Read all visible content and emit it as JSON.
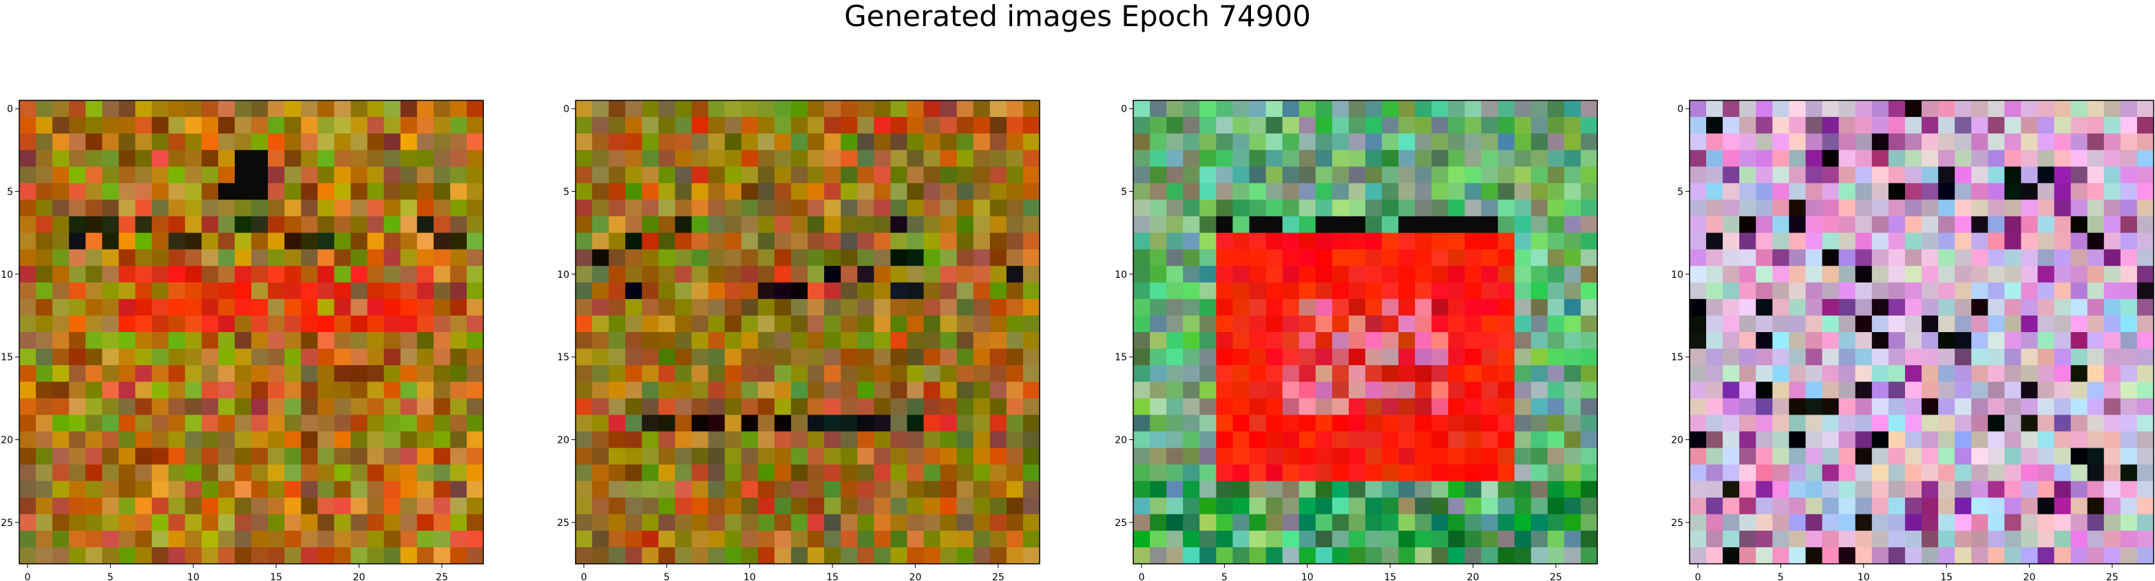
{
  "figure": {
    "title": "Generated images Epoch 74900"
  },
  "chart_data": [
    {
      "type": "heatmap",
      "title": "",
      "image_index": 1,
      "grid_size": [
        28,
        28
      ],
      "dominant_palette": [
        "#c8781e",
        "#a05a14",
        "#8c8c14",
        "#e8320a",
        "#101010"
      ],
      "features": "orange/olive noise with a red horizontal band around rows 10-13 and a black block near row 4, col 13",
      "xticks": [
        0,
        5,
        10,
        15,
        20,
        25
      ],
      "yticks": [
        0,
        5,
        10,
        15,
        20,
        25
      ],
      "xlim": [
        -0.5,
        27.5
      ],
      "ylim": [
        27.5,
        -0.5
      ]
    },
    {
      "type": "heatmap",
      "title": "",
      "image_index": 2,
      "grid_size": [
        28,
        28
      ],
      "dominant_palette": [
        "#b4781e",
        "#966414",
        "#7a781e",
        "#d24614",
        "#141414"
      ],
      "features": "orange/olive noise with a dark horizontal band around row 19 and dark cells near rows 7-11",
      "xticks": [
        0,
        5,
        10,
        15,
        20,
        25
      ],
      "yticks": [
        0,
        5,
        10,
        15,
        20,
        25
      ],
      "xlim": [
        -0.5,
        27.5
      ],
      "ylim": [
        27.5,
        -0.5
      ]
    },
    {
      "type": "heatmap",
      "title": "",
      "image_index": 3,
      "grid_size": [
        28,
        28
      ],
      "dominant_palette": [
        "#5aa064",
        "#78b48c",
        "#ff1e0a",
        "#e0281e",
        "#0a0a0a"
      ],
      "features": "green border noise with a large red rectangular frame from rows 8-22 and cols 5-22, pinkish interior",
      "xticks": [
        0,
        5,
        10,
        15,
        20,
        25
      ],
      "yticks": [
        0,
        5,
        10,
        15,
        20,
        25
      ],
      "xlim": [
        -0.5,
        27.5
      ],
      "ylim": [
        27.5,
        -0.5
      ]
    },
    {
      "type": "heatmap",
      "title": "",
      "image_index": 4,
      "grid_size": [
        28,
        28
      ],
      "dominant_palette": [
        "#d2a0c8",
        "#e6b4d2",
        "#b4c8dc",
        "#8c3c8c",
        "#0a0a0a"
      ],
      "features": "pink/lilac noise with scattered dark and purple cells",
      "xticks": [
        0,
        5,
        10,
        15,
        20,
        25
      ],
      "yticks": [
        0,
        5,
        10,
        15,
        20,
        25
      ],
      "xlim": [
        -0.5,
        27.5
      ],
      "ylim": [
        27.5,
        -0.5
      ]
    }
  ]
}
